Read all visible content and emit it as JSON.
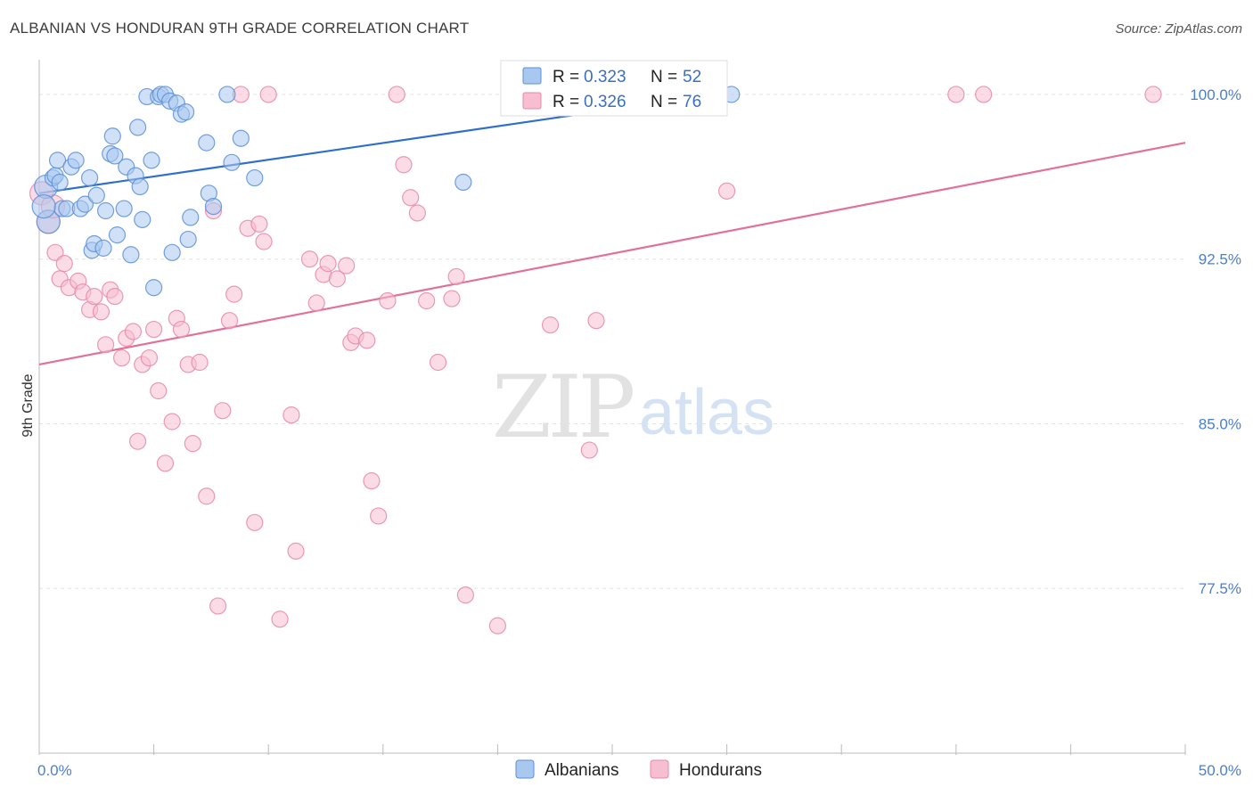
{
  "title": "ALBANIAN VS HONDURAN 9TH GRADE CORRELATION CHART",
  "source": "Source: ZipAtlas.com",
  "watermark": {
    "zip": "ZIP",
    "atlas": "atlas"
  },
  "colors": {
    "albanians_fill": "#a9c8f0",
    "albanians_stroke": "#5b8fd6",
    "albanians_line": "#2f6fcc",
    "hondurans_fill": "#f7bdd0",
    "hondurans_stroke": "#e58aa9",
    "hondurans_line": "#e2709a",
    "grid": "#e3e3e3",
    "tick_text": "#4a7fd0"
  },
  "chart_data": {
    "type": "scatter",
    "title": "ALBANIAN VS HONDURAN 9TH GRADE CORRELATION CHART",
    "xlabel": "",
    "ylabel": "9th Grade",
    "xlim": [
      0,
      50
    ],
    "ylim": [
      70.0,
      101.5
    ],
    "x_tick_labels": [
      {
        "value": 0,
        "label": "0.0%"
      },
      {
        "value": 50,
        "label": "50.0%"
      }
    ],
    "y_tick_labels": [
      {
        "value": 100.0,
        "label": "100.0%"
      },
      {
        "value": 92.5,
        "label": "92.5%"
      },
      {
        "value": 85.0,
        "label": "85.0%"
      },
      {
        "value": 77.5,
        "label": "77.5%"
      }
    ],
    "grid": true,
    "legend_position": "top-center",
    "bottom_legend_position": "bottom-center",
    "series": [
      {
        "name": "Albanians",
        "r_label": "R = ",
        "r_value": "0.323",
        "n_label": "N = ",
        "n_value": "52",
        "trend": {
          "x": [
            0,
            29.5
          ],
          "y": [
            95.5,
            100.0
          ]
        },
        "points": [
          [
            0.3,
            95.8
          ],
          [
            0.4,
            94.2
          ],
          [
            0.6,
            96.2
          ],
          [
            0.7,
            96.3
          ],
          [
            0.8,
            97.0
          ],
          [
            0.9,
            96.0
          ],
          [
            1.0,
            94.8
          ],
          [
            1.2,
            94.8
          ],
          [
            1.4,
            96.7
          ],
          [
            1.6,
            97.0
          ],
          [
            1.8,
            94.8
          ],
          [
            2.0,
            95.0
          ],
          [
            2.2,
            96.2
          ],
          [
            2.3,
            92.9
          ],
          [
            2.4,
            93.2
          ],
          [
            2.5,
            95.4
          ],
          [
            2.8,
            93.0
          ],
          [
            2.9,
            94.7
          ],
          [
            3.1,
            97.3
          ],
          [
            3.2,
            98.1
          ],
          [
            3.3,
            97.2
          ],
          [
            3.4,
            93.6
          ],
          [
            3.7,
            94.8
          ],
          [
            3.8,
            96.7
          ],
          [
            4.0,
            92.7
          ],
          [
            4.2,
            96.3
          ],
          [
            4.3,
            98.5
          ],
          [
            4.4,
            95.8
          ],
          [
            4.5,
            94.3
          ],
          [
            4.7,
            99.9
          ],
          [
            4.9,
            97.0
          ],
          [
            5.0,
            91.2
          ],
          [
            5.2,
            99.9
          ],
          [
            5.3,
            100.0
          ],
          [
            5.5,
            100.0
          ],
          [
            5.7,
            99.7
          ],
          [
            5.8,
            92.8
          ],
          [
            6.0,
            99.6
          ],
          [
            6.2,
            99.1
          ],
          [
            6.4,
            99.2
          ],
          [
            6.5,
            93.4
          ],
          [
            6.6,
            94.4
          ],
          [
            7.3,
            97.8
          ],
          [
            7.4,
            95.5
          ],
          [
            7.6,
            94.9
          ],
          [
            8.2,
            100.0
          ],
          [
            8.4,
            96.9
          ],
          [
            8.8,
            98.0
          ],
          [
            9.4,
            96.2
          ],
          [
            18.5,
            96.0
          ],
          [
            30.2,
            100.0
          ],
          [
            0.2,
            94.9
          ]
        ]
      },
      {
        "name": "Hondurans",
        "r_label": "R = ",
        "r_value": "0.326",
        "n_label": "N = ",
        "n_value": "76",
        "trend": {
          "x": [
            0,
            50
          ],
          "y": [
            87.7,
            97.8
          ]
        },
        "points": [
          [
            0.1,
            95.5
          ],
          [
            0.4,
            94.2
          ],
          [
            0.7,
            92.8
          ],
          [
            0.9,
            91.6
          ],
          [
            1.1,
            92.3
          ],
          [
            1.3,
            91.2
          ],
          [
            1.7,
            91.5
          ],
          [
            1.9,
            91.0
          ],
          [
            2.2,
            90.2
          ],
          [
            2.4,
            90.8
          ],
          [
            2.7,
            90.1
          ],
          [
            2.9,
            88.6
          ],
          [
            3.1,
            91.1
          ],
          [
            3.3,
            90.8
          ],
          [
            3.6,
            88.0
          ],
          [
            3.8,
            88.9
          ],
          [
            4.1,
            89.2
          ],
          [
            4.3,
            84.2
          ],
          [
            4.5,
            87.7
          ],
          [
            4.8,
            88.0
          ],
          [
            5.0,
            89.3
          ],
          [
            5.2,
            86.5
          ],
          [
            5.5,
            83.2
          ],
          [
            5.8,
            85.1
          ],
          [
            6.0,
            89.8
          ],
          [
            6.2,
            89.3
          ],
          [
            6.5,
            87.7
          ],
          [
            6.7,
            84.1
          ],
          [
            7.0,
            87.8
          ],
          [
            7.3,
            81.7
          ],
          [
            7.6,
            94.7
          ],
          [
            7.8,
            76.7
          ],
          [
            8.0,
            85.6
          ],
          [
            8.3,
            89.7
          ],
          [
            8.5,
            90.9
          ],
          [
            8.8,
            100.0
          ],
          [
            9.1,
            93.9
          ],
          [
            9.4,
            80.5
          ],
          [
            9.6,
            94.1
          ],
          [
            9.8,
            93.3
          ],
          [
            10.0,
            100.0
          ],
          [
            10.5,
            76.1
          ],
          [
            11.0,
            85.4
          ],
          [
            11.2,
            79.2
          ],
          [
            11.8,
            92.5
          ],
          [
            12.1,
            90.5
          ],
          [
            12.4,
            91.8
          ],
          [
            12.6,
            92.3
          ],
          [
            13.0,
            91.6
          ],
          [
            13.4,
            92.2
          ],
          [
            13.6,
            88.7
          ],
          [
            13.8,
            89.0
          ],
          [
            14.3,
            88.8
          ],
          [
            14.5,
            82.4
          ],
          [
            14.8,
            80.8
          ],
          [
            15.2,
            90.6
          ],
          [
            15.6,
            100.0
          ],
          [
            15.9,
            96.8
          ],
          [
            16.2,
            95.3
          ],
          [
            16.5,
            94.6
          ],
          [
            16.9,
            90.6
          ],
          [
            17.4,
            87.8
          ],
          [
            18.0,
            90.7
          ],
          [
            18.2,
            91.7
          ],
          [
            18.6,
            77.2
          ],
          [
            20.0,
            75.8
          ],
          [
            22.3,
            89.5
          ],
          [
            24.0,
            83.8
          ],
          [
            24.3,
            89.7
          ],
          [
            26.8,
            100.0
          ],
          [
            27.5,
            100.0
          ],
          [
            30.0,
            95.6
          ],
          [
            40.0,
            100.0
          ],
          [
            41.2,
            100.0
          ],
          [
            48.6,
            100.0
          ],
          [
            0.6,
            94.9
          ]
        ]
      }
    ]
  }
}
